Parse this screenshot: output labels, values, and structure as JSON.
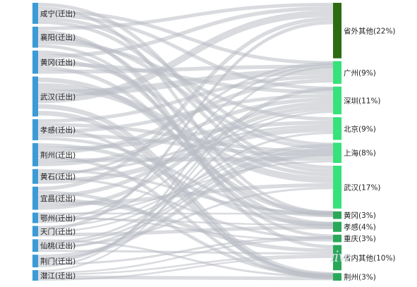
{
  "chart_data": {
    "type": "sankey",
    "colors": {
      "source": "#3b9bd6",
      "link": "#b9bec4",
      "target_dark": "#2d6b12",
      "target_bright": "#37e27a",
      "target_mid": "#2aa85a"
    },
    "sources": [
      {
        "label": "咸宁(迁出)",
        "weight": 5.0
      },
      {
        "label": "襄阳(迁出)",
        "weight": 5.0
      },
      {
        "label": "黄冈(迁出)",
        "weight": 5.5
      },
      {
        "label": "武汉(迁出)",
        "weight": 9.5
      },
      {
        "label": "孝感(迁出)",
        "weight": 5.0
      },
      {
        "label": "荆州(迁出)",
        "weight": 5.5
      },
      {
        "label": "黄石(迁出)",
        "weight": 3.5
      },
      {
        "label": "宜昌(迁出)",
        "weight": 5.5
      },
      {
        "label": "鄂州(迁出)",
        "weight": 2.5
      },
      {
        "label": "天门(迁出)",
        "weight": 2.5
      },
      {
        "label": "仙桃(迁出)",
        "weight": 3.0
      },
      {
        "label": "荆门(迁出)",
        "weight": 3.0
      },
      {
        "label": "潜江(迁出)",
        "weight": 2.5
      }
    ],
    "targets": [
      {
        "label": "省外其他(22%)",
        "percent": 22,
        "tone": "target_dark"
      },
      {
        "label": "广州(9%)",
        "percent": 9,
        "tone": "target_bright"
      },
      {
        "label": "深圳(11%)",
        "percent": 11,
        "tone": "target_bright"
      },
      {
        "label": "北京(9%)",
        "percent": 9,
        "tone": "target_bright"
      },
      {
        "label": "上海(8%)",
        "percent": 8,
        "tone": "target_bright"
      },
      {
        "label": "武汉(17%)",
        "percent": 17,
        "tone": "target_bright"
      },
      {
        "label": "黄冈(3%)",
        "percent": 3,
        "tone": "target_mid"
      },
      {
        "label": "孝感(4%)",
        "percent": 4,
        "tone": "target_mid"
      },
      {
        "label": "重庆(3%)",
        "percent": 3,
        "tone": "target_mid"
      },
      {
        "label": "省内其他(10%)",
        "percent": 10,
        "tone": "target_mid"
      },
      {
        "label": "荆州(3%)",
        "percent": 3,
        "tone": "target_mid"
      }
    ],
    "watermark": "ɪiw"
  }
}
